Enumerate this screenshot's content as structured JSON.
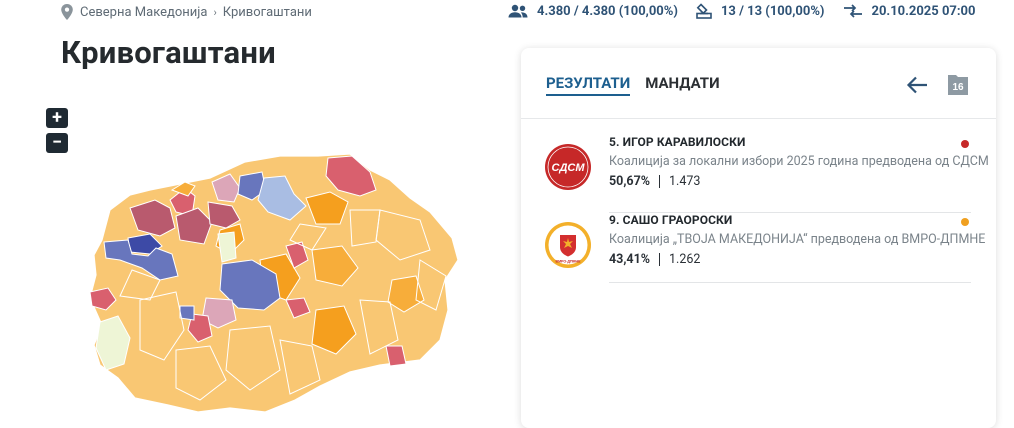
{
  "breadcrumb": {
    "country": "Северна Македонија",
    "municipality": "Кривогаштани"
  },
  "stats": {
    "voters": "4.380 / 4.380 (100,00%)",
    "polling_stations": "13 / 13 (100,00%)",
    "updated": "20.10.2025 07:00"
  },
  "page_title": "Кривогаштани",
  "zoom": {
    "in": "+",
    "out": "−"
  },
  "tabs": {
    "results": "РЕЗУЛТАТИ",
    "mandates": "МАНДАТИ"
  },
  "badge_count": "16",
  "candidates": [
    {
      "name": "5. ИГОР КАРАВИЛОСКИ",
      "coalition": "Коалиција за локални избори 2025 година предводена од СДСМ",
      "percent": "50,67%",
      "votes": "1.473",
      "logo_text": "СДСМ",
      "color": "#c62828"
    },
    {
      "name": "9. САШО ГРАОРОСКИ",
      "coalition": "Коалиција „ТВОЈА МАКЕДОНИЈА“ предводена од ВМРО-ДПМНЕ",
      "percent": "43,41%",
      "votes": "1.262",
      "logo_text": "ВМРО-ДПМНЕ",
      "color": "#f0a020"
    }
  ],
  "map_colors": {
    "light_orange": "#f9c773",
    "orange": "#f7ad3a",
    "deep_orange": "#f59f1e",
    "red": "#d9606e",
    "rose": "#b95a6e",
    "blue": "#6876bd",
    "navy": "#3d4aa6",
    "light_blue": "#a9bde3",
    "pink": "#dca6b8",
    "cream": "#eef5d6"
  }
}
